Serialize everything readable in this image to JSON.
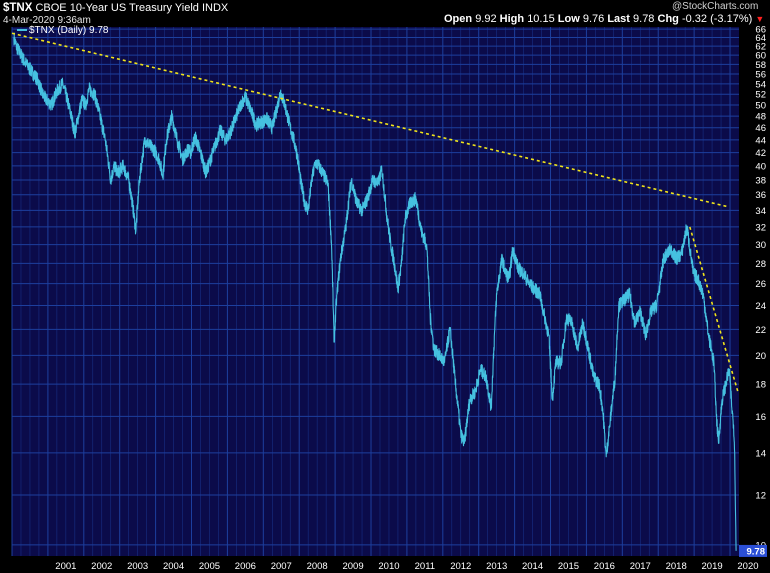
{
  "header": {
    "symbol": "$TNX",
    "description": "CBOE 10-Year US Treasury Yield",
    "exchange": "INDX",
    "date": "4-Mar-2020 9:36am",
    "brand": "@StockCharts.com",
    "open_label": "Open",
    "open": "9.92",
    "high_label": "High",
    "high": "10.15",
    "low_label": "Low",
    "low": "9.76",
    "last_label": "Last",
    "last": "9.78",
    "chg_label": "Chg",
    "chg": "-0.32 (-3.17%)",
    "chg_arrow": "▼"
  },
  "legend": {
    "text": "$TNX (Daily) 9.78"
  },
  "colors": {
    "background": "#000000",
    "plot_bg": "#0b0b4a",
    "grid": "#1d3f9e",
    "line": "#45c1e0",
    "trendline": "#f2e51a",
    "last_value_bg": "#2b4fd6"
  },
  "chart_data": {
    "type": "line",
    "ylabel": "",
    "xlabel": "",
    "y_scale": "log",
    "ylim": [
      9.6,
      66.5
    ],
    "grid": true,
    "y_ticks": [
      10,
      12,
      14,
      16,
      18,
      20,
      22,
      24,
      26,
      28,
      30,
      32,
      34,
      36,
      38,
      40,
      42,
      44,
      46,
      48,
      50,
      52,
      54,
      56,
      58,
      60,
      62,
      64,
      66
    ],
    "x_ticks": [
      "2001",
      "2002",
      "2003",
      "2004",
      "2005",
      "2006",
      "2007",
      "2008",
      "2009",
      "2010",
      "2011",
      "2012",
      "2013",
      "2014",
      "2015",
      "2016",
      "2017",
      "2018",
      "2019",
      "2020"
    ],
    "last_value_label": "9.78",
    "series": [
      {
        "name": "$TNX (Daily)",
        "points": [
          [
            2000.05,
            64.0
          ],
          [
            2000.12,
            62.0
          ],
          [
            2000.25,
            60.0
          ],
          [
            2000.4,
            58.0
          ],
          [
            2000.55,
            56.5
          ],
          [
            2000.7,
            55.0
          ],
          [
            2000.85,
            52.0
          ],
          [
            2000.95,
            51.0
          ],
          [
            2001.1,
            50.0
          ],
          [
            2001.25,
            52.5
          ],
          [
            2001.4,
            54.0
          ],
          [
            2001.5,
            52.0
          ],
          [
            2001.65,
            48.0
          ],
          [
            2001.75,
            45.0
          ],
          [
            2001.85,
            48.0
          ],
          [
            2001.95,
            51.0
          ],
          [
            2002.05,
            50.0
          ],
          [
            2002.15,
            53.0
          ],
          [
            2002.3,
            52.0
          ],
          [
            2002.45,
            48.0
          ],
          [
            2002.6,
            44.0
          ],
          [
            2002.75,
            38.0
          ],
          [
            2002.85,
            40.0
          ],
          [
            2002.95,
            39.0
          ],
          [
            2003.1,
            40.0
          ],
          [
            2003.25,
            38.0
          ],
          [
            2003.35,
            35.0
          ],
          [
            2003.45,
            31.5
          ],
          [
            2003.55,
            38.0
          ],
          [
            2003.7,
            44.0
          ],
          [
            2003.85,
            43.0
          ],
          [
            2003.95,
            42.5
          ],
          [
            2004.1,
            41.0
          ],
          [
            2004.2,
            38.5
          ],
          [
            2004.3,
            44.0
          ],
          [
            2004.45,
            48.0
          ],
          [
            2004.6,
            44.0
          ],
          [
            2004.75,
            41.0
          ],
          [
            2004.9,
            42.5
          ],
          [
            2004.98,
            42.0
          ],
          [
            2005.1,
            44.5
          ],
          [
            2005.25,
            42.0
          ],
          [
            2005.4,
            39.0
          ],
          [
            2005.5,
            40.5
          ],
          [
            2005.65,
            43.0
          ],
          [
            2005.8,
            45.5
          ],
          [
            2005.95,
            44.0
          ],
          [
            2006.1,
            45.5
          ],
          [
            2006.25,
            48.0
          ],
          [
            2006.4,
            50.5
          ],
          [
            2006.5,
            51.5
          ],
          [
            2006.65,
            49.0
          ],
          [
            2006.8,
            46.5
          ],
          [
            2006.95,
            47.0
          ],
          [
            2007.1,
            47.5
          ],
          [
            2007.25,
            46.0
          ],
          [
            2007.4,
            50.0
          ],
          [
            2007.48,
            52.5
          ],
          [
            2007.6,
            50.0
          ],
          [
            2007.75,
            46.0
          ],
          [
            2007.85,
            44.0
          ],
          [
            2007.95,
            41.5
          ],
          [
            2008.05,
            37.5
          ],
          [
            2008.15,
            35.0
          ],
          [
            2008.25,
            34.0
          ],
          [
            2008.35,
            38.0
          ],
          [
            2008.45,
            40.5
          ],
          [
            2008.55,
            40.0
          ],
          [
            2008.7,
            38.5
          ],
          [
            2008.8,
            37.5
          ],
          [
            2008.9,
            30.0
          ],
          [
            2008.97,
            21.0
          ],
          [
            2009.05,
            25.0
          ],
          [
            2009.15,
            28.5
          ],
          [
            2009.3,
            32.0
          ],
          [
            2009.45,
            38.0
          ],
          [
            2009.6,
            35.0
          ],
          [
            2009.75,
            34.0
          ],
          [
            2009.9,
            35.5
          ],
          [
            2010.05,
            38.0
          ],
          [
            2010.2,
            37.5
          ],
          [
            2010.3,
            39.5
          ],
          [
            2010.45,
            33.0
          ],
          [
            2010.55,
            30.0
          ],
          [
            2010.65,
            28.0
          ],
          [
            2010.75,
            25.5
          ],
          [
            2010.85,
            28.0
          ],
          [
            2010.95,
            33.0
          ],
          [
            2011.1,
            35.0
          ],
          [
            2011.25,
            35.5
          ],
          [
            2011.4,
            31.5
          ],
          [
            2011.55,
            30.0
          ],
          [
            2011.65,
            23.0
          ],
          [
            2011.75,
            20.5
          ],
          [
            2011.9,
            20.0
          ],
          [
            2012.05,
            19.5
          ],
          [
            2012.2,
            22.0
          ],
          [
            2012.35,
            18.0
          ],
          [
            2012.5,
            15.0
          ],
          [
            2012.6,
            14.5
          ],
          [
            2012.75,
            17.0
          ],
          [
            2012.9,
            17.5
          ],
          [
            2013.05,
            19.0
          ],
          [
            2013.2,
            18.5
          ],
          [
            2013.35,
            16.5
          ],
          [
            2013.5,
            25.0
          ],
          [
            2013.65,
            28.5
          ],
          [
            2013.75,
            27.0
          ],
          [
            2013.85,
            26.5
          ],
          [
            2013.95,
            29.5
          ],
          [
            2014.1,
            27.5
          ],
          [
            2014.25,
            27.0
          ],
          [
            2014.4,
            26.0
          ],
          [
            2014.55,
            25.5
          ],
          [
            2014.7,
            25.0
          ],
          [
            2014.8,
            23.5
          ],
          [
            2014.95,
            21.5
          ],
          [
            2015.05,
            17.0
          ],
          [
            2015.15,
            19.5
          ],
          [
            2015.3,
            19.5
          ],
          [
            2015.45,
            23.0
          ],
          [
            2015.6,
            22.5
          ],
          [
            2015.75,
            20.5
          ],
          [
            2015.9,
            22.5
          ],
          [
            2016.05,
            20.5
          ],
          [
            2016.2,
            18.5
          ],
          [
            2016.35,
            18.0
          ],
          [
            2016.45,
            16.5
          ],
          [
            2016.55,
            13.8
          ],
          [
            2016.65,
            15.5
          ],
          [
            2016.8,
            18.5
          ],
          [
            2016.9,
            24.0
          ],
          [
            2017.05,
            24.5
          ],
          [
            2017.2,
            25.0
          ],
          [
            2017.35,
            22.5
          ],
          [
            2017.5,
            23.5
          ],
          [
            2017.65,
            21.5
          ],
          [
            2017.8,
            23.5
          ],
          [
            2017.95,
            24.0
          ],
          [
            2018.05,
            26.0
          ],
          [
            2018.15,
            28.5
          ],
          [
            2018.35,
            29.5
          ],
          [
            2018.5,
            28.5
          ],
          [
            2018.65,
            29.0
          ],
          [
            2018.8,
            32.0
          ],
          [
            2018.9,
            29.0
          ],
          [
            2018.98,
            27.0
          ],
          [
            2019.1,
            26.5
          ],
          [
            2019.25,
            25.0
          ],
          [
            2019.4,
            21.5
          ],
          [
            2019.55,
            19.5
          ],
          [
            2019.62,
            16.0
          ],
          [
            2019.68,
            14.5
          ],
          [
            2019.78,
            17.0
          ],
          [
            2019.88,
            18.0
          ],
          [
            2019.98,
            19.0
          ],
          [
            2020.05,
            16.5
          ],
          [
            2020.1,
            15.5
          ],
          [
            2020.13,
            14.0
          ],
          [
            2020.15,
            11.5
          ],
          [
            2020.17,
            9.78
          ]
        ]
      }
    ],
    "trendlines": [
      {
        "from": [
          2000.0,
          65.0
        ],
        "to": [
          2019.9,
          34.5
        ]
      },
      {
        "from": [
          2018.88,
          32.0
        ],
        "to": [
          2020.22,
          17.5
        ]
      }
    ]
  }
}
